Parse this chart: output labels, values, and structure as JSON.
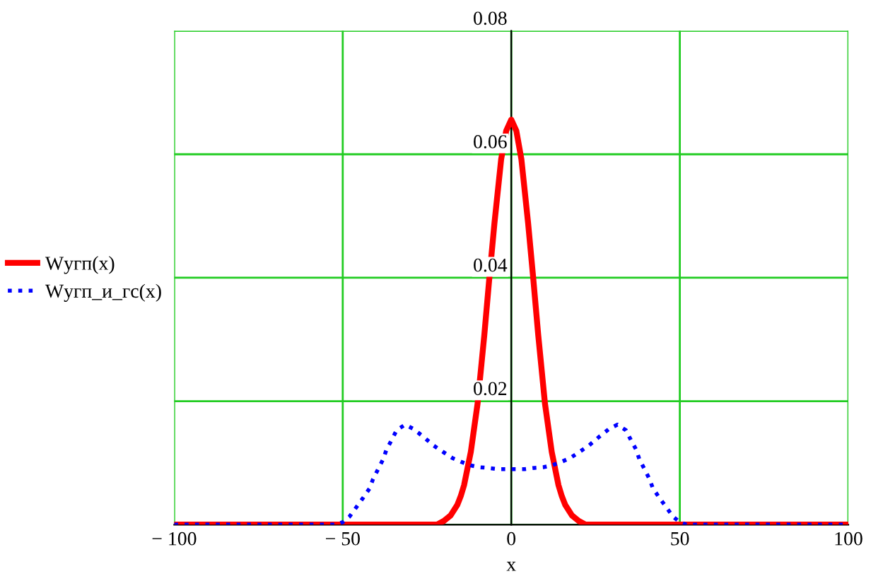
{
  "chart_data": {
    "type": "line",
    "xlabel": "x",
    "xlim": [
      -100,
      100
    ],
    "xticks": [
      {
        "value": -100,
        "label": "− 100"
      },
      {
        "value": -50,
        "label": "− 50"
      },
      0,
      50,
      100
    ],
    "ylim": [
      0,
      0.08
    ],
    "yticks": [
      {
        "value": 0,
        "label": null
      },
      0.02,
      0.04,
      0.06,
      0.08
    ],
    "grid": true,
    "legend": "left",
    "series": [
      {
        "name": "Wугп(x)",
        "color": "#ff0000",
        "line_style": "solid",
        "x": [
          -100,
          -50,
          -22,
          -20,
          -18,
          -16,
          -15,
          -14,
          -12,
          -10,
          -8,
          -6.5,
          -5,
          -3,
          -1.5,
          0,
          1.5,
          3,
          5,
          6.5,
          8,
          10,
          12,
          14,
          15,
          16,
          18,
          20,
          22,
          50,
          100
        ],
        "values": [
          0,
          0,
          0,
          0.0006,
          0.0015,
          0.0032,
          0.0046,
          0.0064,
          0.0118,
          0.0196,
          0.0307,
          0.04,
          0.0488,
          0.0592,
          0.0638,
          0.0656,
          0.0638,
          0.0592,
          0.0488,
          0.04,
          0.0307,
          0.0196,
          0.0118,
          0.0064,
          0.0046,
          0.0032,
          0.0015,
          0.0006,
          0,
          0,
          0
        ]
      },
      {
        "name": "Wугп_и_гс(x)",
        "color": "#0000ff",
        "line_style": "dotted",
        "x": [
          -100,
          -52,
          -50,
          -48,
          -46,
          -44,
          -42,
          -41,
          -39.5,
          -38,
          -37,
          -35.5,
          -34,
          -31.5,
          -29,
          -26,
          -23,
          -20,
          -17.5,
          -15,
          -12,
          -9.5,
          -7,
          -4,
          -1,
          1,
          4,
          7,
          9.5,
          12,
          15,
          17.5,
          20,
          23,
          26,
          29,
          31.5,
          34,
          35.5,
          37,
          38,
          39.5,
          41,
          42,
          44,
          46,
          48,
          50,
          52,
          100
        ],
        "values": [
          0,
          0,
          0.0004,
          0.0013,
          0.0028,
          0.0043,
          0.0059,
          0.0074,
          0.009,
          0.0106,
          0.0122,
          0.0137,
          0.0153,
          0.0162,
          0.0155,
          0.0142,
          0.0128,
          0.0117,
          0.0108,
          0.0102,
          0.0096,
          0.0093,
          0.0092,
          0.009,
          0.009,
          0.009,
          0.009,
          0.0092,
          0.0093,
          0.0096,
          0.0102,
          0.0108,
          0.0117,
          0.0128,
          0.0142,
          0.0155,
          0.0162,
          0.0153,
          0.0137,
          0.0122,
          0.0106,
          0.009,
          0.0074,
          0.0059,
          0.0043,
          0.0028,
          0.0013,
          0.0004,
          0,
          0
        ]
      }
    ]
  }
}
